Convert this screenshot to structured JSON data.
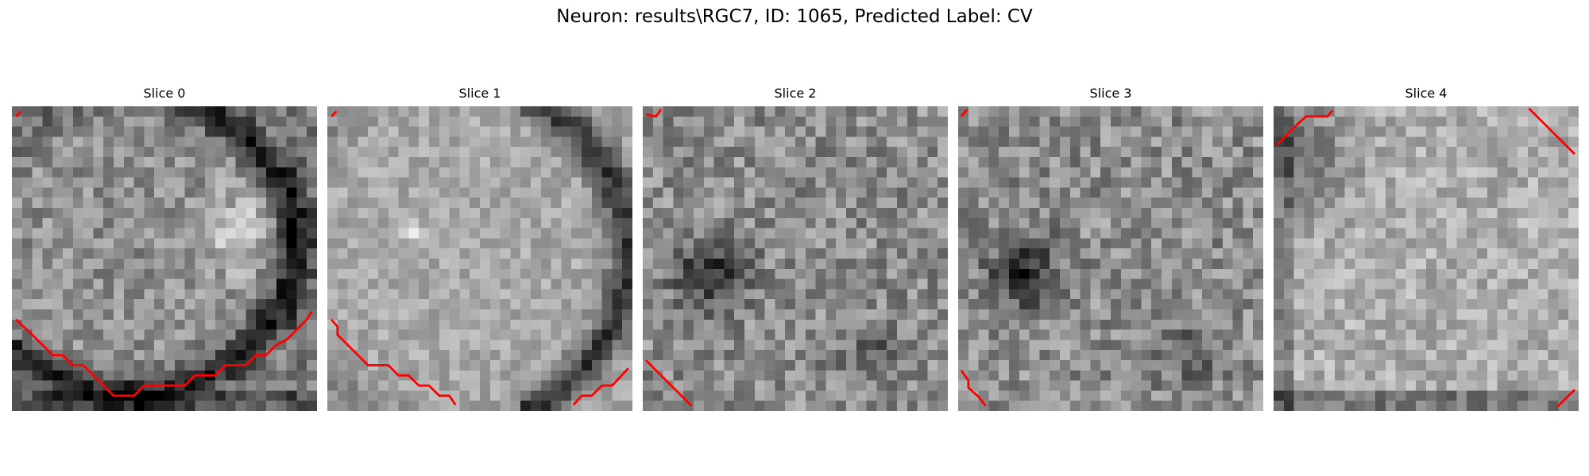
{
  "figure": {
    "title": "Neuron: results\\RGC7, ID: 1065, Predicted Label: CV"
  },
  "panels": [
    {
      "title": "Slice 0",
      "pattern": "cell-ring",
      "contour_color": "#ff0000"
    },
    {
      "title": "Slice 1",
      "pattern": "cell-bright",
      "contour_color": "#ff0000"
    },
    {
      "title": "Slice 2",
      "pattern": "noise-dark-blob",
      "contour_color": "#ff0000"
    },
    {
      "title": "Slice 3",
      "pattern": "noise-dark-blob",
      "contour_color": "#ff0000"
    },
    {
      "title": "Slice 4",
      "pattern": "bright-noise",
      "contour_color": "#ff0000"
    }
  ]
}
